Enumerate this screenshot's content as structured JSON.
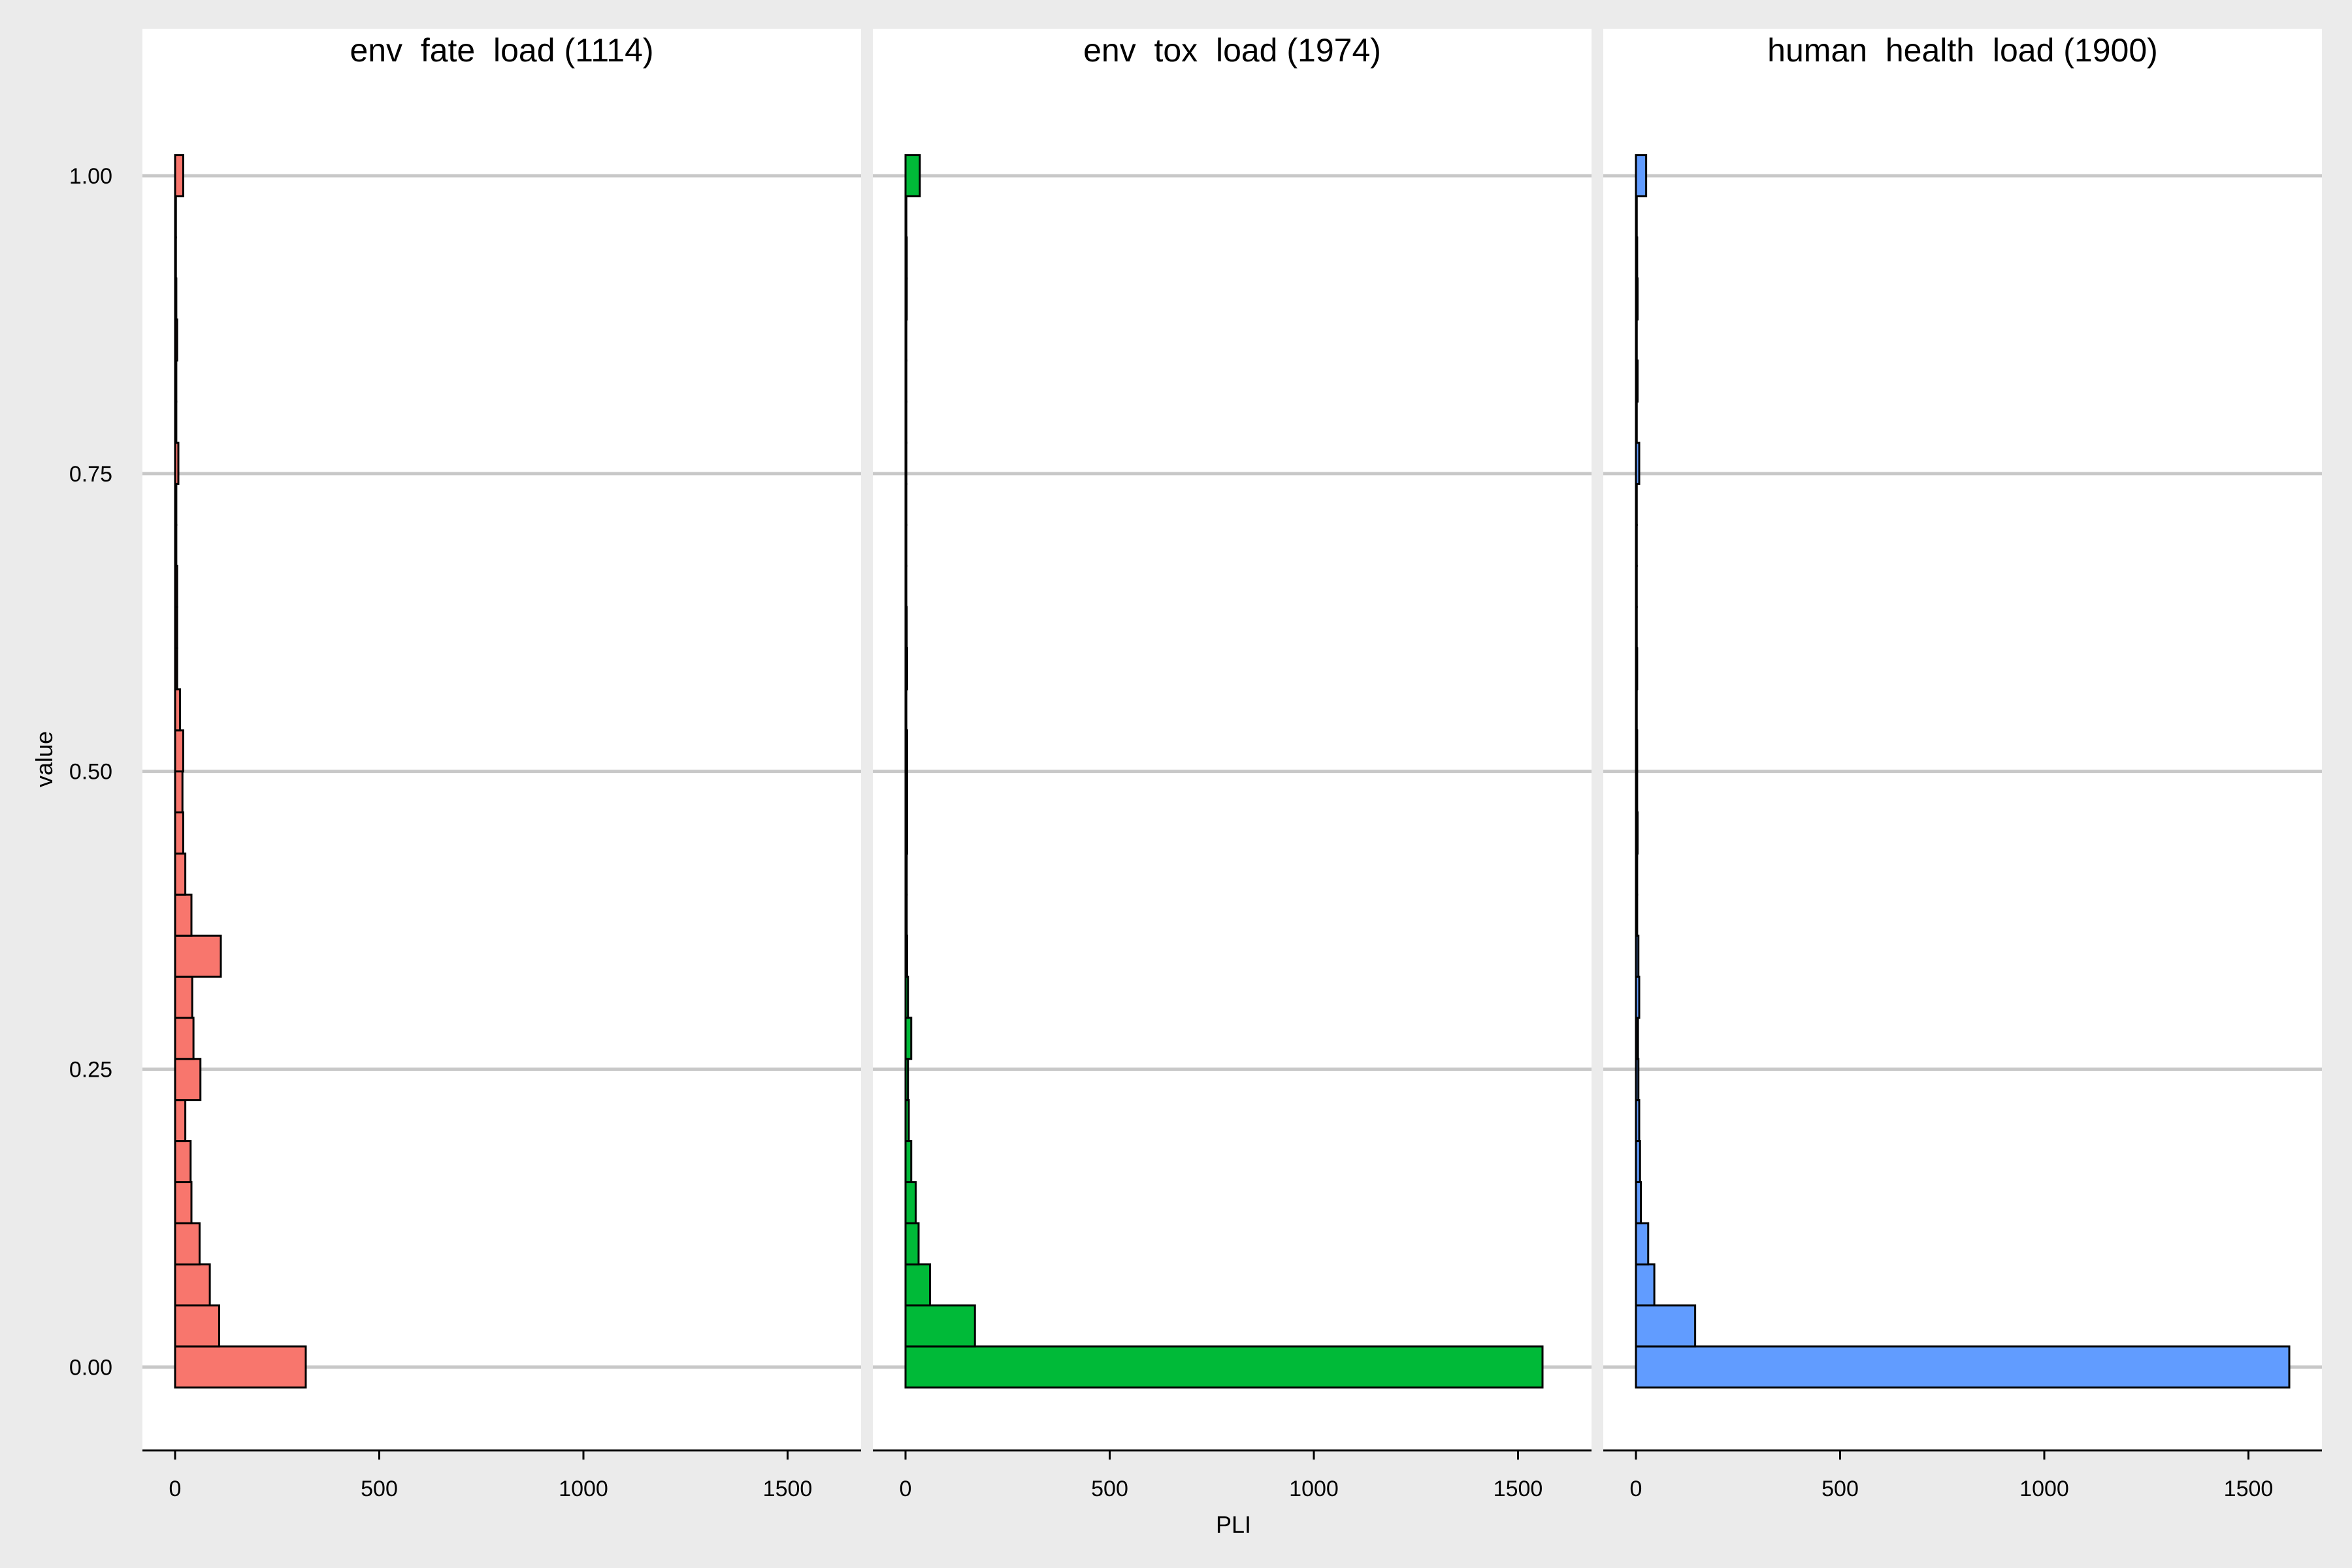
{
  "chart_data": {
    "type": "bar",
    "orientation": "horizontal",
    "xlabel": "PLI",
    "ylabel": "value",
    "x_ticks": [
      0,
      500,
      1000,
      1500
    ],
    "y_ticks": [
      "0.00",
      "0.25",
      "0.50",
      "0.75",
      "1.00"
    ],
    "x_range": [
      -80,
      1680
    ],
    "y_range": [
      -0.07,
      1.085
    ],
    "bin_width": 0.0345,
    "grid": "horizontal major only",
    "panels": [
      {
        "title": "env  fate  load (1114)",
        "color": "#F8766D",
        "bins": [
          {
            "value": 0.0,
            "count": 320
          },
          {
            "value": 0.0345,
            "count": 108
          },
          {
            "value": 0.069,
            "count": 85
          },
          {
            "value": 0.1034,
            "count": 60
          },
          {
            "value": 0.1379,
            "count": 40
          },
          {
            "value": 0.1724,
            "count": 38
          },
          {
            "value": 0.2069,
            "count": 25
          },
          {
            "value": 0.2414,
            "count": 62
          },
          {
            "value": 0.2759,
            "count": 45
          },
          {
            "value": 0.3103,
            "count": 42
          },
          {
            "value": 0.3448,
            "count": 112
          },
          {
            "value": 0.3793,
            "count": 40
          },
          {
            "value": 0.4138,
            "count": 25
          },
          {
            "value": 0.4483,
            "count": 20
          },
          {
            "value": 0.4828,
            "count": 18
          },
          {
            "value": 0.5172,
            "count": 20
          },
          {
            "value": 0.5517,
            "count": 12
          },
          {
            "value": 0.5862,
            "count": 5
          },
          {
            "value": 0.6207,
            "count": 5
          },
          {
            "value": 0.6552,
            "count": 5
          },
          {
            "value": 0.6897,
            "count": 3
          },
          {
            "value": 0.7241,
            "count": 3
          },
          {
            "value": 0.7586,
            "count": 8
          },
          {
            "value": 0.7931,
            "count": 3
          },
          {
            "value": 0.8276,
            "count": 3
          },
          {
            "value": 0.8621,
            "count": 5
          },
          {
            "value": 0.8966,
            "count": 3
          },
          {
            "value": 0.931,
            "count": 2
          },
          {
            "value": 0.9655,
            "count": 2
          },
          {
            "value": 1.0,
            "count": 20
          }
        ]
      },
      {
        "title": "env  tox  load (1974)",
        "color": "#00BA38",
        "bins": [
          {
            "value": 0.0,
            "count": 1560
          },
          {
            "value": 0.0345,
            "count": 170
          },
          {
            "value": 0.069,
            "count": 60
          },
          {
            "value": 0.1034,
            "count": 32
          },
          {
            "value": 0.1379,
            "count": 25
          },
          {
            "value": 0.1724,
            "count": 14
          },
          {
            "value": 0.2069,
            "count": 8
          },
          {
            "value": 0.2414,
            "count": 6
          },
          {
            "value": 0.2759,
            "count": 14
          },
          {
            "value": 0.3103,
            "count": 6
          },
          {
            "value": 0.3448,
            "count": 4
          },
          {
            "value": 0.3793,
            "count": 3
          },
          {
            "value": 0.4138,
            "count": 3
          },
          {
            "value": 0.4483,
            "count": 4
          },
          {
            "value": 0.4828,
            "count": 4
          },
          {
            "value": 0.5172,
            "count": 4
          },
          {
            "value": 0.5517,
            "count": 2
          },
          {
            "value": 0.5862,
            "count": 4
          },
          {
            "value": 0.6207,
            "count": 3
          },
          {
            "value": 0.6552,
            "count": 2
          },
          {
            "value": 0.6897,
            "count": 2
          },
          {
            "value": 0.7241,
            "count": 2
          },
          {
            "value": 0.7586,
            "count": 2
          },
          {
            "value": 0.7931,
            "count": 2
          },
          {
            "value": 0.8276,
            "count": 2
          },
          {
            "value": 0.8621,
            "count": 2
          },
          {
            "value": 0.8966,
            "count": 3
          },
          {
            "value": 0.931,
            "count": 3
          },
          {
            "value": 0.9655,
            "count": 2
          },
          {
            "value": 1.0,
            "count": 35
          }
        ]
      },
      {
        "title": "human  health  load (1900)",
        "color": "#619CFF",
        "bins": [
          {
            "value": 0.0,
            "count": 1600
          },
          {
            "value": 0.0345,
            "count": 145
          },
          {
            "value": 0.069,
            "count": 45
          },
          {
            "value": 0.1034,
            "count": 30
          },
          {
            "value": 0.1379,
            "count": 12
          },
          {
            "value": 0.1724,
            "count": 10
          },
          {
            "value": 0.2069,
            "count": 8
          },
          {
            "value": 0.2414,
            "count": 6
          },
          {
            "value": 0.2759,
            "count": 5
          },
          {
            "value": 0.3103,
            "count": 8
          },
          {
            "value": 0.3448,
            "count": 6
          },
          {
            "value": 0.3793,
            "count": 3
          },
          {
            "value": 0.4138,
            "count": 3
          },
          {
            "value": 0.4483,
            "count": 4
          },
          {
            "value": 0.4828,
            "count": 3
          },
          {
            "value": 0.5172,
            "count": 3
          },
          {
            "value": 0.5517,
            "count": 2
          },
          {
            "value": 0.5862,
            "count": 3
          },
          {
            "value": 0.6207,
            "count": 2
          },
          {
            "value": 0.6552,
            "count": 2
          },
          {
            "value": 0.6897,
            "count": 2
          },
          {
            "value": 0.7241,
            "count": 2
          },
          {
            "value": 0.7586,
            "count": 8
          },
          {
            "value": 0.7931,
            "count": 2
          },
          {
            "value": 0.8276,
            "count": 4
          },
          {
            "value": 0.8621,
            "count": 2
          },
          {
            "value": 0.8966,
            "count": 4
          },
          {
            "value": 0.931,
            "count": 3
          },
          {
            "value": 0.9655,
            "count": 2
          },
          {
            "value": 1.0,
            "count": 25
          }
        ]
      }
    ]
  }
}
